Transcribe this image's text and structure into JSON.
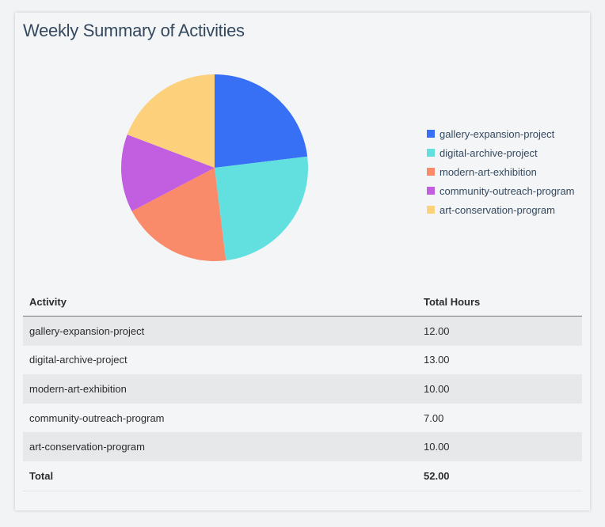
{
  "title": "Weekly Summary of Activities",
  "chart_data": {
    "type": "pie",
    "title": "Weekly Summary of Activities",
    "categories": [
      "gallery-expansion-project",
      "digital-archive-project",
      "modern-art-exhibition",
      "community-outreach-program",
      "art-conservation-program"
    ],
    "values": [
      12,
      13,
      10,
      7,
      10
    ],
    "colors": [
      "#3770f5",
      "#62e0e0",
      "#f98a6a",
      "#c15fe0",
      "#fdd07c"
    ],
    "legend_position": "right",
    "start_angle": "top, clockwise"
  },
  "table": {
    "headers": [
      "Activity",
      "Total Hours"
    ],
    "rows": [
      [
        "gallery-expansion-project",
        "12.00"
      ],
      [
        "digital-archive-project",
        "13.00"
      ],
      [
        "modern-art-exhibition",
        "10.00"
      ],
      [
        "community-outreach-program",
        "7.00"
      ],
      [
        "art-conservation-program",
        "10.00"
      ]
    ],
    "total": [
      "Total",
      "52.00"
    ]
  }
}
